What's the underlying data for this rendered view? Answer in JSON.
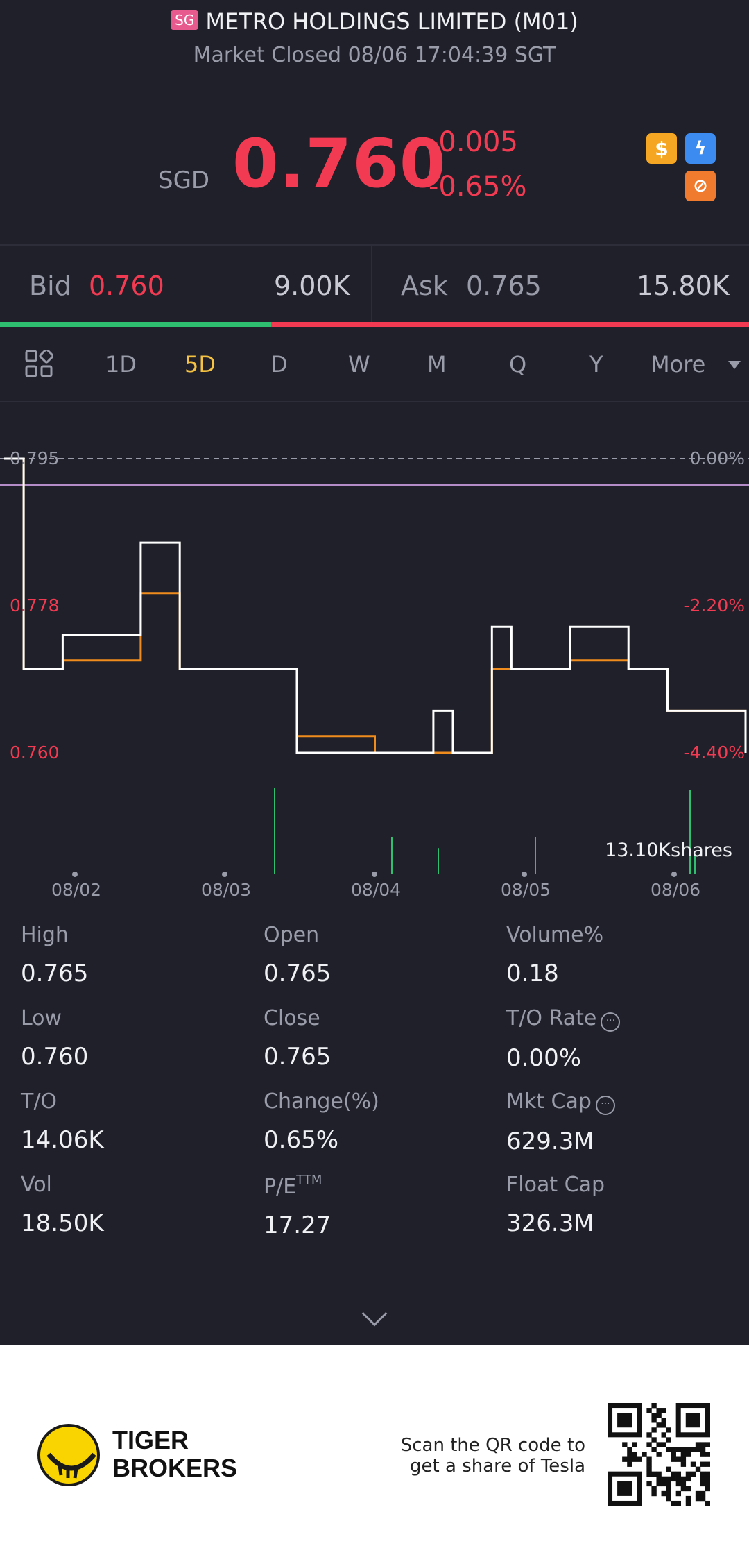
{
  "header": {
    "market_badge": "SG",
    "title": "METRO HOLDINGS LIMITED (M01)",
    "status": "Market Closed 08/06 17:04:39 SGT",
    "currency": "SGD",
    "price": "0.760",
    "change": "-0.005",
    "change_pct": "-0.65%"
  },
  "bid_ask": {
    "bid_label": "Bid",
    "bid_price": "0.760",
    "bid_volume": "9.00K",
    "ask_label": "Ask",
    "ask_price": "0.765",
    "ask_volume": "15.80K"
  },
  "tabs": [
    "1D",
    "5D",
    "D",
    "W",
    "M",
    "Q",
    "Y",
    "More"
  ],
  "active_tab": "5D",
  "chart_data": {
    "type": "line",
    "left_ticks": [
      "0.795",
      "0.778",
      "0.760"
    ],
    "right_ticks": [
      "0.00%",
      "-2.20%",
      "-4.40%"
    ],
    "x_labels": [
      "08/02",
      "08/03",
      "08/04",
      "08/05",
      "08/06"
    ],
    "volume_label": "13.10Kshares",
    "series": [
      {
        "values": [
          0.795,
          0.77,
          0.77,
          0.774,
          0.774,
          0.774,
          0.774,
          0.785,
          0.785,
          0.77,
          0.77,
          0.77,
          0.77,
          0.77,
          0.77,
          0.76,
          0.76,
          0.76,
          0.76,
          0.76,
          0.76,
          0.76,
          0.765,
          0.76,
          0.76,
          0.775,
          0.77,
          0.77,
          0.77,
          0.775,
          0.775,
          0.775,
          0.77,
          0.77,
          0.765,
          0.765,
          0.765,
          0.765,
          0.76
        ]
      },
      {
        "values": [
          0.795,
          0.77,
          0.77,
          0.771,
          0.771,
          0.771,
          0.771,
          0.779,
          0.779,
          0.77,
          0.77,
          0.77,
          0.77,
          0.77,
          0.77,
          0.762,
          0.762,
          0.762,
          0.762,
          0.76,
          0.76,
          0.76,
          0.76,
          0.76,
          0.76,
          0.77,
          0.77,
          0.77,
          0.77,
          0.771,
          0.771,
          0.771,
          0.77,
          0.77,
          0.765,
          0.765,
          0.765,
          0.765,
          0.764
        ]
      }
    ],
    "colors": {
      "price": "#ffffff",
      "average": "#f08c1e",
      "volume": "#2fbf71",
      "prev_close": "#b48cc8"
    }
  },
  "stats": [
    {
      "label": "High",
      "value": "0.765"
    },
    {
      "label": "Open",
      "value": "0.765"
    },
    {
      "label": "Volume%",
      "value": "0.18"
    },
    {
      "label": "Low",
      "value": "0.760"
    },
    {
      "label": "Close",
      "value": "0.765"
    },
    {
      "label": "T/O Rate",
      "value": "0.00%"
    },
    {
      "label": "T/O",
      "value": "14.06K"
    },
    {
      "label": "Change(%)",
      "value": "0.65%"
    },
    {
      "label": "Mkt Cap",
      "value": "629.3M"
    },
    {
      "label": "Vol",
      "value": "18.50K"
    },
    {
      "label": "P/E",
      "label_sup": "TTM",
      "value": "17.27"
    },
    {
      "label": "Float Cap",
      "value": "326.3M"
    }
  ],
  "footer": {
    "brand_line1": "TIGER",
    "brand_line2": "BROKERS",
    "scan_line1": "Scan the QR code to",
    "scan_line2": "get a share of Tesla"
  },
  "icons": {
    "dollar_badge": "dollar-icon",
    "lightning_badge": "lightning-icon",
    "lock_badge": "lock-icon"
  }
}
